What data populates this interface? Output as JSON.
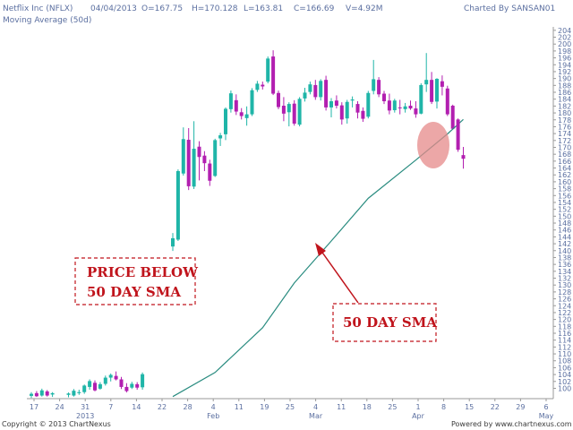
{
  "header": {
    "symbol": "Netflix Inc (NFLX)",
    "date": "04/04/2013",
    "open": "O=167.75",
    "high": "H=170.128",
    "low": "L=163.81",
    "close": "C=166.69",
    "volume": "V=4.92M",
    "charted_by": "Charted By SANSAN01",
    "indicator": "Moving Average (50d)"
  },
  "footer": {
    "copyright": "Copyright © 2013 ChartNexus",
    "powered_by": "Powered by www.chartnexus.com"
  },
  "annotations": {
    "price_below_line1": "PRICE BELOW",
    "price_below_line2": "50 DAY SMA",
    "sma_label": "50 DAY SMA"
  },
  "colors": {
    "up_candle": "#1fb5a8",
    "down_candle": "#b21fb0",
    "sma_line": "#2a8c80",
    "annotation_red": "#c0141c",
    "highlight": "#e58a8a"
  },
  "chart_data": {
    "type": "candlestick",
    "title": "Netflix Inc (NFLX)",
    "ylim": [
      97,
      205
    ],
    "y_ticks": [
      100,
      102,
      104,
      106,
      108,
      110,
      112,
      114,
      116,
      118,
      120,
      122,
      124,
      126,
      128,
      130,
      132,
      134,
      136,
      138,
      140,
      142,
      144,
      146,
      148,
      150,
      152,
      154,
      156,
      158,
      160,
      162,
      164,
      166,
      168,
      170,
      172,
      174,
      176,
      178,
      180,
      182,
      184,
      186,
      188,
      190,
      192,
      194,
      196,
      198,
      200,
      202,
      204
    ],
    "x_tick_labels": [
      "17",
      "24",
      "31",
      "7",
      "14",
      "22",
      "28",
      "4",
      "11",
      "19",
      "25",
      "4",
      "11",
      "18",
      "25",
      "1",
      "8",
      "15",
      "22",
      "29",
      "6"
    ],
    "x_month_labels": [
      "2013",
      "Feb",
      "Mar",
      "Apr",
      "May"
    ],
    "candles": [
      {
        "date": "2013-12-17",
        "o": 97.8,
        "h": 98.9,
        "l": 97.2,
        "c": 98.4
      },
      {
        "date": "2013-12-18",
        "o": 98.6,
        "h": 99.2,
        "l": 97.5,
        "c": 97.7
      },
      {
        "date": "2013-12-19",
        "o": 97.9,
        "h": 99.9,
        "l": 97.6,
        "c": 99.4
      },
      {
        "date": "2013-12-20",
        "o": 99.1,
        "h": 99.5,
        "l": 97.6,
        "c": 97.9
      },
      {
        "date": "2013-12-21",
        "o": 98.2,
        "h": 98.9,
        "l": 97.5,
        "c": 98.6
      },
      {
        "date": "2014-01-01",
        "o": 98.1,
        "h": 98.8,
        "l": 97.4,
        "c": 98.5
      },
      {
        "date": "2014-01-02",
        "o": 97.9,
        "h": 99.8,
        "l": 97.6,
        "c": 99.3
      },
      {
        "date": "2014-01-03",
        "o": 98.6,
        "h": 99.6,
        "l": 98.1,
        "c": 98.9
      },
      {
        "date": "2014-01-04",
        "o": 98.9,
        "h": 101.1,
        "l": 98.4,
        "c": 100.8
      },
      {
        "date": "2014-01-07",
        "o": 100.4,
        "h": 102.6,
        "l": 99.6,
        "c": 102.1
      },
      {
        "date": "2014-01-08",
        "o": 101.6,
        "h": 102.3,
        "l": 99.1,
        "c": 99.4
      },
      {
        "date": "2014-01-09",
        "o": 99.9,
        "h": 101.8,
        "l": 99.6,
        "c": 101.2
      },
      {
        "date": "2014-01-10",
        "o": 101.3,
        "h": 103.7,
        "l": 100.8,
        "c": 103.1
      },
      {
        "date": "2014-01-11",
        "o": 103.1,
        "h": 104.3,
        "l": 102.0,
        "c": 103.9
      },
      {
        "date": "2014-01-14",
        "o": 103.6,
        "h": 104.9,
        "l": 102.3,
        "c": 102.6
      },
      {
        "date": "2014-01-15",
        "o": 102.6,
        "h": 103.3,
        "l": 99.8,
        "c": 100.4
      },
      {
        "date": "2014-01-16",
        "o": 100.4,
        "h": 101.5,
        "l": 98.8,
        "c": 99.2
      },
      {
        "date": "2014-01-17",
        "o": 100.2,
        "h": 101.9,
        "l": 99.8,
        "c": 101.3
      },
      {
        "date": "2014-01-18",
        "o": 101.2,
        "h": 101.8,
        "l": 99.6,
        "c": 100.2
      },
      {
        "date": "2014-01-22",
        "o": 100.3,
        "h": 104.6,
        "l": 99.6,
        "c": 104.1
      },
      {
        "date": "2014-01-23",
        "o": 141.2,
        "h": 145.1,
        "l": 139.9,
        "c": 143.6
      },
      {
        "date": "2014-01-24",
        "o": 143.2,
        "h": 163.6,
        "l": 142.8,
        "c": 163.1
      },
      {
        "date": "2014-01-25",
        "o": 162.4,
        "h": 175.8,
        "l": 161.8,
        "c": 172.4
      },
      {
        "date": "2014-01-28",
        "o": 172.2,
        "h": 175.6,
        "l": 157.6,
        "c": 158.7
      },
      {
        "date": "2014-01-29",
        "o": 158.6,
        "h": 177.6,
        "l": 157.9,
        "c": 169.6
      },
      {
        "date": "2014-01-30",
        "o": 170.2,
        "h": 171.8,
        "l": 160.4,
        "c": 167.2
      },
      {
        "date": "2014-01-31",
        "o": 167.6,
        "h": 168.9,
        "l": 163.1,
        "c": 165.4
      },
      {
        "date": "2014-02-01",
        "o": 165.3,
        "h": 166.4,
        "l": 158.8,
        "c": 160.3
      },
      {
        "date": "2014-02-04",
        "o": 161.7,
        "h": 172.5,
        "l": 161.4,
        "c": 172.1
      },
      {
        "date": "2014-02-05",
        "o": 172.6,
        "h": 174.2,
        "l": 170.4,
        "c": 173.5
      },
      {
        "date": "2014-02-06",
        "o": 173.8,
        "h": 181.6,
        "l": 172.1,
        "c": 181.2
      },
      {
        "date": "2014-02-07",
        "o": 181.1,
        "h": 186.5,
        "l": 180.1,
        "c": 185.7
      },
      {
        "date": "2014-02-08",
        "o": 183.7,
        "h": 185.4,
        "l": 179.4,
        "c": 180.4
      },
      {
        "date": "2014-02-11",
        "o": 180.2,
        "h": 181.4,
        "l": 178.1,
        "c": 179.1
      },
      {
        "date": "2014-02-12",
        "o": 178.5,
        "h": 181.9,
        "l": 176.3,
        "c": 179.6
      },
      {
        "date": "2014-02-13",
        "o": 179.6,
        "h": 187.2,
        "l": 179.1,
        "c": 186.6
      },
      {
        "date": "2014-02-14",
        "o": 186.7,
        "h": 189.3,
        "l": 186.1,
        "c": 188.5
      },
      {
        "date": "2014-02-15",
        "o": 188.2,
        "h": 189.1,
        "l": 186.8,
        "c": 187.7
      },
      {
        "date": "2014-02-19",
        "o": 189.1,
        "h": 196.4,
        "l": 188.6,
        "c": 195.8
      },
      {
        "date": "2014-02-20",
        "o": 196.4,
        "h": 198.2,
        "l": 185.2,
        "c": 185.6
      },
      {
        "date": "2014-02-21",
        "o": 185.8,
        "h": 186.5,
        "l": 181.1,
        "c": 181.7
      },
      {
        "date": "2014-02-22",
        "o": 182.1,
        "h": 184.6,
        "l": 177.6,
        "c": 179.8
      },
      {
        "date": "2014-02-25",
        "o": 180.2,
        "h": 183.1,
        "l": 176.1,
        "c": 182.6
      },
      {
        "date": "2014-02-26",
        "o": 182.7,
        "h": 183.7,
        "l": 176.3,
        "c": 176.9
      },
      {
        "date": "2014-02-27",
        "o": 176.6,
        "h": 184.6,
        "l": 176.1,
        "c": 184.1
      },
      {
        "date": "2014-02-28",
        "o": 184.2,
        "h": 187.3,
        "l": 183.3,
        "c": 185.9
      },
      {
        "date": "2014-03-01",
        "o": 186.1,
        "h": 189.1,
        "l": 185.4,
        "c": 188.3
      },
      {
        "date": "2014-03-04",
        "o": 188.1,
        "h": 189.6,
        "l": 183.8,
        "c": 184.6
      },
      {
        "date": "2014-03-05",
        "o": 184.6,
        "h": 189.8,
        "l": 183.6,
        "c": 189.3
      },
      {
        "date": "2014-03-06",
        "o": 189.6,
        "h": 190.8,
        "l": 180.7,
        "c": 181.6
      },
      {
        "date": "2014-03-07",
        "o": 181.6,
        "h": 184.3,
        "l": 178.7,
        "c": 183.4
      },
      {
        "date": "2014-03-08",
        "o": 183.6,
        "h": 185.1,
        "l": 181.3,
        "c": 182.1
      },
      {
        "date": "2014-03-11",
        "o": 182.2,
        "h": 183.1,
        "l": 176.6,
        "c": 178.1
      },
      {
        "date": "2014-03-12",
        "o": 178.4,
        "h": 183.8,
        "l": 176.9,
        "c": 183.2
      },
      {
        "date": "2014-03-13",
        "o": 183.6,
        "h": 184.8,
        "l": 181.6,
        "c": 183.9
      },
      {
        "date": "2014-03-14",
        "o": 182.6,
        "h": 183.4,
        "l": 178.4,
        "c": 180.1
      },
      {
        "date": "2014-03-15",
        "o": 180.6,
        "h": 181.6,
        "l": 177.4,
        "c": 178.3
      },
      {
        "date": "2014-03-18",
        "o": 178.9,
        "h": 186.4,
        "l": 178.4,
        "c": 185.8
      },
      {
        "date": "2014-03-19",
        "o": 186.4,
        "h": 195.4,
        "l": 185.4,
        "c": 189.8
      },
      {
        "date": "2014-03-20",
        "o": 189.6,
        "h": 190.4,
        "l": 184.6,
        "c": 185.4
      },
      {
        "date": "2014-03-21",
        "o": 185.6,
        "h": 186.4,
        "l": 182.6,
        "c": 183.4
      },
      {
        "date": "2014-03-22",
        "o": 183.6,
        "h": 185.6,
        "l": 179.6,
        "c": 180.7
      },
      {
        "date": "2014-03-25",
        "o": 180.8,
        "h": 184.1,
        "l": 180.1,
        "c": 183.6
      },
      {
        "date": "2014-03-26",
        "o": 181.6,
        "h": 183.8,
        "l": 179.6,
        "c": 181.4
      },
      {
        "date": "2014-03-27",
        "o": 181.1,
        "h": 182.9,
        "l": 180.1,
        "c": 181.9
      },
      {
        "date": "2014-03-28",
        "o": 182.1,
        "h": 183.6,
        "l": 180.9,
        "c": 181.3
      },
      {
        "date": "2014-03-29",
        "o": 181.3,
        "h": 183.4,
        "l": 178.6,
        "c": 179.6
      },
      {
        "date": "2014-04-01",
        "o": 179.8,
        "h": 188.6,
        "l": 179.6,
        "c": 188.1
      },
      {
        "date": "2014-04-02",
        "o": 188.3,
        "h": 197.4,
        "l": 186.1,
        "c": 189.6
      },
      {
        "date": "2014-04-03",
        "o": 189.6,
        "h": 191.9,
        "l": 182.6,
        "c": 183.2
      },
      {
        "date": "2014-04-04",
        "o": 183.3,
        "h": 190.1,
        "l": 181.3,
        "c": 189.9
      },
      {
        "date": "2014-04-05",
        "o": 189.2,
        "h": 190.9,
        "l": 185.1,
        "c": 187.6
      },
      {
        "date": "2014-04-08",
        "o": 187.1,
        "h": 187.9,
        "l": 179.1,
        "c": 179.6
      },
      {
        "date": "2014-04-09",
        "o": 182.1,
        "h": 182.4,
        "l": 175.1,
        "c": 175.4
      },
      {
        "date": "2014-04-10",
        "o": 178.1,
        "h": 178.4,
        "l": 168.7,
        "c": 169.3
      },
      {
        "date": "2014-04-11",
        "o": 167.75,
        "h": 170.128,
        "l": 163.81,
        "c": 166.69
      }
    ],
    "sma": [
      {
        "date": "2014-01-23",
        "v": 97.6
      },
      {
        "date": "2014-02-04",
        "v": 104.6
      },
      {
        "date": "2014-02-15",
        "v": 117.6
      },
      {
        "date": "2014-02-26",
        "v": 130.6
      },
      {
        "date": "2014-03-07",
        "v": 142.8
      },
      {
        "date": "2014-03-18",
        "v": 155.2
      },
      {
        "date": "2014-03-29",
        "v": 166.3
      },
      {
        "date": "2014-04-08",
        "v": 173.9
      },
      {
        "date": "2014-04-11",
        "v": 178.1
      }
    ],
    "grid": false
  }
}
